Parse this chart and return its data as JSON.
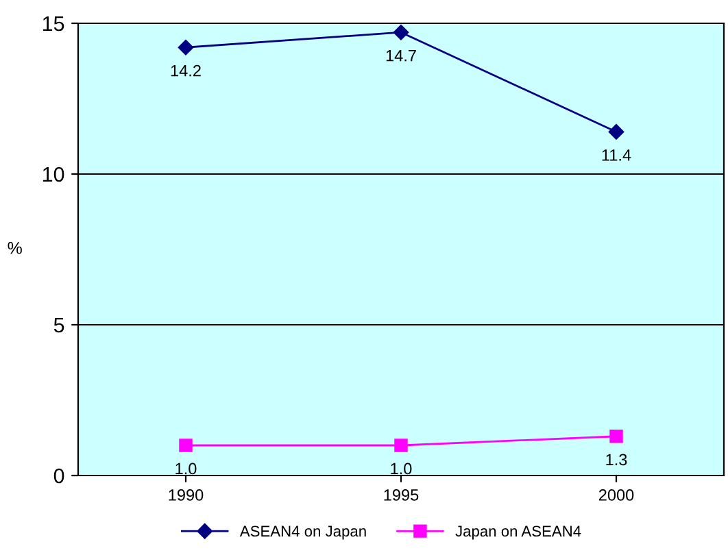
{
  "chart_data": {
    "type": "line",
    "ylabel": "%",
    "categories": [
      "1990",
      "1995",
      "2000"
    ],
    "series": [
      {
        "name": "ASEAN4 on Japan",
        "color": "#000080",
        "marker": "diamond",
        "values": [
          14.2,
          14.7,
          11.4
        ],
        "value_labels": [
          "14.2",
          "14.7",
          "11.4"
        ]
      },
      {
        "name": "Japan on ASEAN4",
        "color": "#ff00ff",
        "marker": "square",
        "values": [
          1.0,
          1.0,
          1.3
        ],
        "value_labels": [
          "1.0",
          "1.0",
          "1.3"
        ]
      }
    ],
    "ylim": [
      0,
      15
    ],
    "yticks": [
      0,
      5,
      10,
      15
    ],
    "grid": "y",
    "legend": "bottom",
    "line_style": "solid"
  }
}
